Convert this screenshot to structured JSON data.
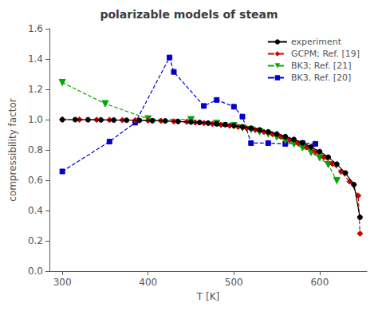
{
  "chart_data": {
    "type": "line",
    "title": "polarizable models of steam",
    "xlabel": "T [K]",
    "ylabel": "compressibility factor",
    "xlim": [
      285,
      655
    ],
    "ylim": [
      0.0,
      1.6
    ],
    "xticks": [
      300,
      400,
      500,
      600
    ],
    "yticks": [
      {
        "value": 0.0,
        "label": "0.0"
      },
      0.2,
      0.4,
      0.6,
      0.8,
      {
        "value": 1.0,
        "label": "1.0"
      },
      1.2,
      1.4,
      1.6
    ],
    "grid": false,
    "legend": "upper right",
    "series": [
      {
        "name": "experiment",
        "color": "#000000",
        "marker": "circle",
        "line_style": "solid",
        "x": [
          300,
          315,
          330,
          345,
          360,
          375,
          390,
          405,
          420,
          435,
          450,
          460,
          470,
          480,
          490,
          500,
          510,
          520,
          530,
          540,
          550,
          560,
          570,
          580,
          590,
          600,
          610,
          620,
          630,
          640,
          647
        ],
        "values": [
          1.0,
          1.0,
          0.999,
          0.998,
          0.997,
          0.996,
          0.995,
          0.993,
          0.991,
          0.988,
          0.984,
          0.981,
          0.977,
          0.972,
          0.967,
          0.96,
          0.952,
          0.943,
          0.932,
          0.919,
          0.905,
          0.888,
          0.869,
          0.847,
          0.82,
          0.789,
          0.752,
          0.706,
          0.648,
          0.571,
          0.355
        ],
        "error_bars": {
          "x": [
            480,
            490
          ],
          "y": [
            0.972,
            0.967
          ],
          "yerr": [
            0.012,
            0.012
          ]
        }
      },
      {
        "name": "GCPM; Ref. [19]",
        "color": "#cc0000",
        "marker": "diamond",
        "line_style": "dashed",
        "x": [
          300,
          320,
          340,
          355,
          370,
          385,
          400,
          415,
          430,
          445,
          455,
          465,
          475,
          485,
          495,
          505,
          515,
          525,
          535,
          545,
          555,
          565,
          575,
          585,
          595,
          605,
          615,
          625,
          635,
          645,
          647
        ],
        "values": [
          1.0,
          1.0,
          0.999,
          0.998,
          0.997,
          0.996,
          0.994,
          0.992,
          0.988,
          0.985,
          0.981,
          0.977,
          0.972,
          0.966,
          0.96,
          0.952,
          0.943,
          0.932,
          0.919,
          0.904,
          0.887,
          0.867,
          0.844,
          0.818,
          0.787,
          0.751,
          0.708,
          0.656,
          0.591,
          0.498,
          0.248
        ]
      },
      {
        "name": "BK3; Ref. [21]",
        "color": "#00aa00",
        "marker": "triangle-down",
        "line_style": "dashed",
        "x": [
          300,
          350,
          400,
          450,
          480,
          500,
          510,
          520,
          530,
          540,
          550,
          560,
          570,
          580,
          590,
          600,
          610,
          620
        ],
        "values": [
          1.245,
          1.105,
          1.005,
          1.0,
          0.975,
          0.96,
          0.945,
          0.935,
          0.92,
          0.905,
          0.885,
          0.862,
          0.84,
          0.815,
          0.783,
          0.748,
          0.703,
          0.598
        ]
      },
      {
        "name": "BK3, Ref. [20]",
        "color": "#0000cc",
        "marker": "square",
        "line_style": "dashed",
        "x": [
          300,
          355,
          385,
          425,
          430,
          465,
          480,
          500,
          510,
          520,
          540,
          560,
          580,
          595
        ],
        "values": [
          0.658,
          0.855,
          0.98,
          1.41,
          1.315,
          1.09,
          1.13,
          1.085,
          1.02,
          0.845,
          0.845,
          0.84,
          0.845,
          0.84
        ]
      }
    ]
  }
}
